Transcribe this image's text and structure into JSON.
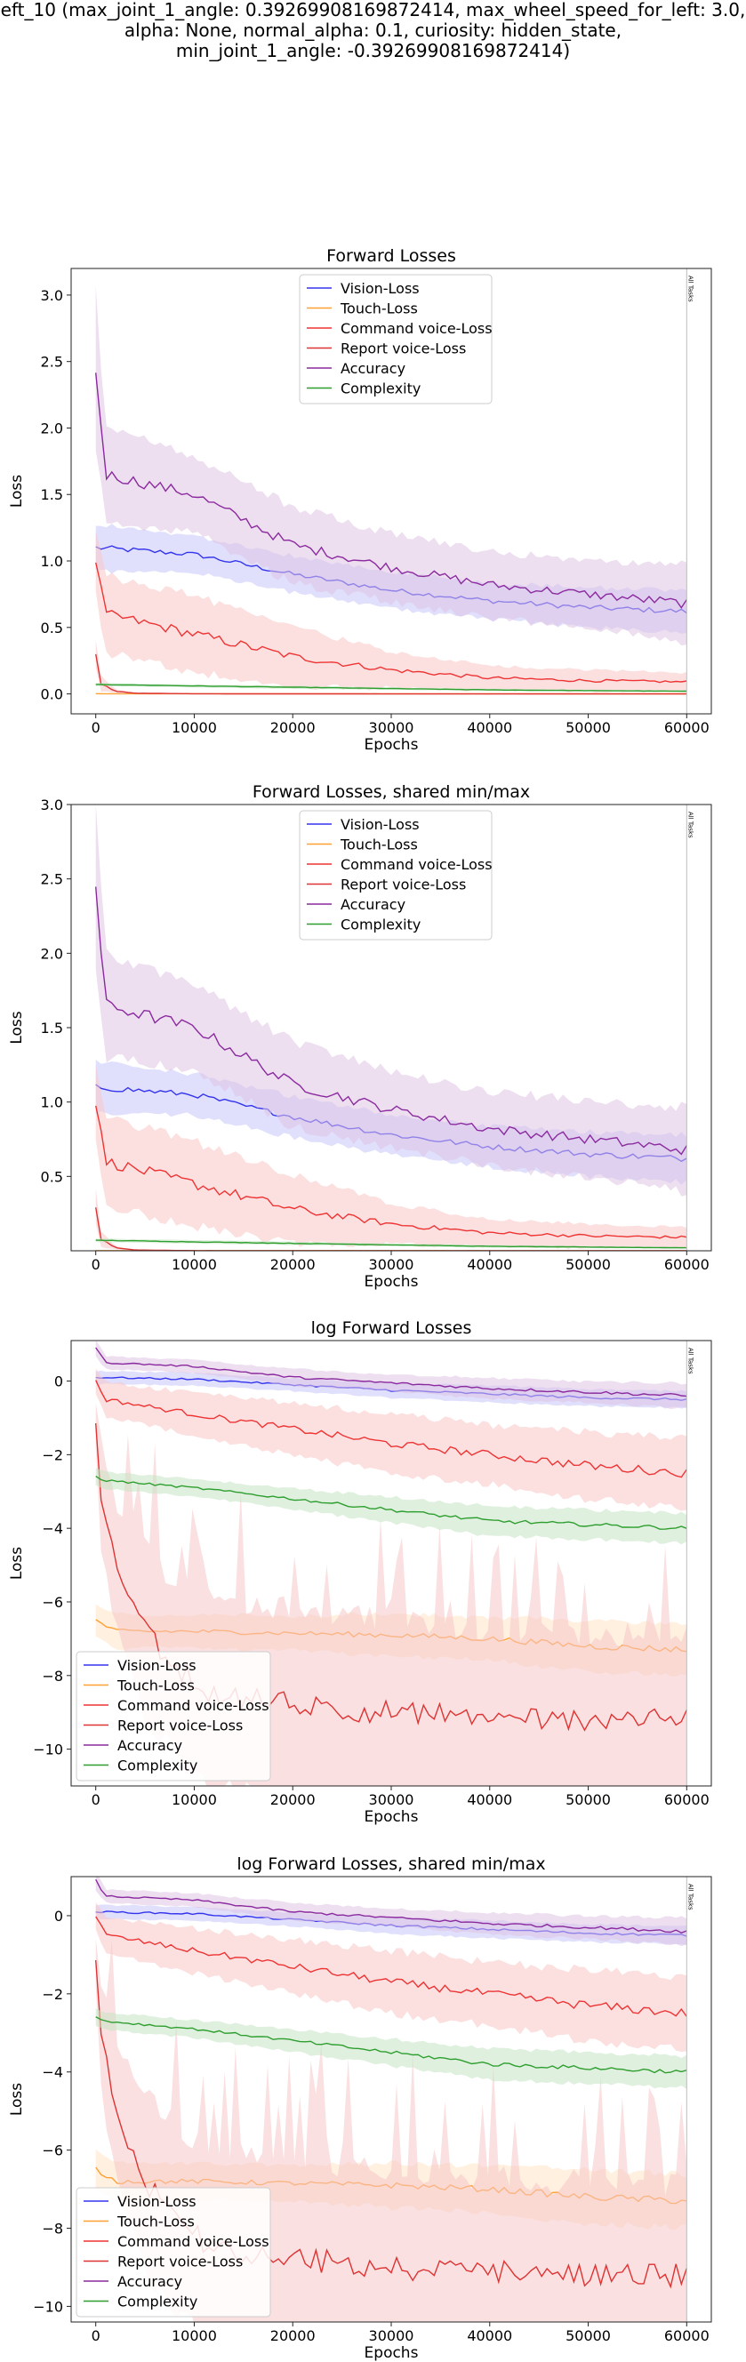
{
  "suptitle_lines": [
    "eft_10 (max_joint_1_angle: 0.39269908169872414, max_wheel_speed_for_left: 3.0,",
    "alpha: None, normal_alpha: 0.1, curiosity: hidden_state,",
    "min_joint_1_angle: -0.39269908169872414)"
  ],
  "colors": {
    "Vision-Loss": "#3333ee",
    "Touch-Loss": "#ffa033",
    "Command voice-Loss": "#ee3333",
    "Report voice-Loss": "#dd3333",
    "Accuracy": "#8a2a9e",
    "Complexity": "#2e9e2e"
  },
  "chart_data": [
    {
      "type": "line",
      "title": "Forward Losses",
      "xlabel": "Epochs",
      "ylabel": "Loss",
      "xlim": [
        -2500,
        62500
      ],
      "ylim": [
        -0.15,
        3.2
      ],
      "xticks": [
        0,
        10000,
        20000,
        30000,
        40000,
        50000,
        60000
      ],
      "yticks": [
        0.0,
        0.5,
        1.0,
        1.5,
        2.0,
        2.5,
        3.0
      ],
      "ytick_labels": [
        "0.0",
        "0.5",
        "1.0",
        "1.5",
        "2.0",
        "2.5",
        "3.0"
      ],
      "legend_position": "top-center",
      "vline_label": "All Tasks",
      "vline_x": 60000,
      "series": [
        {
          "name": "Vision-Loss",
          "x": [
            0,
            10000,
            20000,
            30000,
            40000,
            50000,
            60000
          ],
          "values": [
            1.1,
            1.05,
            0.9,
            0.78,
            0.7,
            0.65,
            0.62
          ],
          "band": [
            0.15,
            0.12,
            0.12,
            0.12,
            0.12,
            0.13,
            0.14
          ]
        },
        {
          "name": "Touch-Loss",
          "x": [
            0,
            1000,
            10000,
            20000,
            30000,
            40000,
            50000,
            60000
          ],
          "values": [
            0.0015,
            0.0012,
            0.0012,
            0.0011,
            0.0011,
            0.0008,
            0.0007,
            0.0006
          ],
          "band": [
            0.001,
            0.001,
            0.0008,
            0.0008,
            0.0008,
            0.0006,
            0.0006,
            0.0005
          ]
        },
        {
          "name": "Command voice-Loss",
          "x": [
            0,
            1000,
            10000,
            20000,
            30000,
            40000,
            50000,
            60000
          ],
          "values": [
            1.0,
            0.6,
            0.45,
            0.28,
            0.18,
            0.12,
            0.1,
            0.09
          ],
          "band": [
            0.2,
            0.25,
            0.25,
            0.2,
            0.12,
            0.08,
            0.07,
            0.06
          ]
        },
        {
          "name": "Report voice-Loss",
          "x": [
            0,
            500,
            2000,
            4000,
            10000,
            20000,
            30000,
            40000,
            50000,
            60000
          ],
          "values": [
            0.3,
            0.08,
            0.02,
            0.005,
            0.001,
            0.0002,
            0.0001,
            0.0001,
            0.0001,
            0.0001
          ],
          "band": [
            0.1,
            0.05,
            0.01,
            0.004,
            0.001,
            0.0002,
            0.0001,
            0.0001,
            0.0001,
            0.0001
          ]
        },
        {
          "name": "Accuracy",
          "x": [
            0,
            1000,
            10000,
            20000,
            30000,
            40000,
            50000,
            60000
          ],
          "values": [
            2.45,
            1.65,
            1.5,
            1.12,
            0.95,
            0.82,
            0.75,
            0.68
          ],
          "band": [
            0.55,
            0.3,
            0.25,
            0.25,
            0.22,
            0.22,
            0.22,
            0.25
          ]
        },
        {
          "name": "Complexity",
          "x": [
            0,
            1000,
            10000,
            20000,
            30000,
            40000,
            50000,
            60000
          ],
          "values": [
            0.07,
            0.07,
            0.06,
            0.05,
            0.04,
            0.03,
            0.025,
            0.02
          ],
          "band": [
            0.01,
            0.01,
            0.01,
            0.01,
            0.008,
            0.008,
            0.006,
            0.006
          ]
        }
      ]
    },
    {
      "type": "line",
      "title": "Forward Losses, shared min/max",
      "xlabel": "Epochs",
      "ylabel": "Loss",
      "xlim": [
        -2500,
        62500
      ],
      "ylim": [
        0.0,
        3.0
      ],
      "xticks": [
        0,
        10000,
        20000,
        30000,
        40000,
        50000,
        60000
      ],
      "yticks": [
        0.5,
        1.0,
        1.5,
        2.0,
        2.5,
        3.0
      ],
      "ytick_labels": [
        "0.5",
        "1.0",
        "1.5",
        "2.0",
        "2.5",
        "3.0"
      ],
      "legend_position": "top-center",
      "vline_label": "All Tasks",
      "vline_x": 60000,
      "series": [
        {
          "name": "Vision-Loss",
          "x": [
            0,
            10000,
            20000,
            30000,
            40000,
            50000,
            60000
          ],
          "values": [
            1.1,
            1.05,
            0.9,
            0.78,
            0.7,
            0.65,
            0.62
          ],
          "band": [
            0.15,
            0.12,
            0.12,
            0.12,
            0.12,
            0.13,
            0.14
          ]
        },
        {
          "name": "Touch-Loss",
          "x": [
            0,
            1000,
            10000,
            20000,
            30000,
            40000,
            50000,
            60000
          ],
          "values": [
            0.0015,
            0.0012,
            0.0012,
            0.0011,
            0.0011,
            0.0008,
            0.0007,
            0.0006
          ],
          "band": [
            0.001,
            0.001,
            0.0008,
            0.0008,
            0.0008,
            0.0006,
            0.0006,
            0.0005
          ]
        },
        {
          "name": "Command voice-Loss",
          "x": [
            0,
            1000,
            10000,
            20000,
            30000,
            40000,
            50000,
            60000
          ],
          "values": [
            1.0,
            0.6,
            0.45,
            0.28,
            0.18,
            0.12,
            0.1,
            0.09
          ],
          "band": [
            0.2,
            0.25,
            0.25,
            0.2,
            0.12,
            0.08,
            0.07,
            0.06
          ]
        },
        {
          "name": "Report voice-Loss",
          "x": [
            0,
            500,
            2000,
            4000,
            10000,
            20000,
            30000,
            40000,
            50000,
            60000
          ],
          "values": [
            0.3,
            0.08,
            0.02,
            0.005,
            0.001,
            0.0002,
            0.0001,
            0.0001,
            0.0001,
            0.0001
          ],
          "band": [
            0.1,
            0.05,
            0.01,
            0.004,
            0.001,
            0.0002,
            0.0001,
            0.0001,
            0.0001,
            0.0001
          ]
        },
        {
          "name": "Accuracy",
          "x": [
            0,
            1000,
            10000,
            20000,
            30000,
            40000,
            50000,
            60000
          ],
          "values": [
            2.45,
            1.65,
            1.5,
            1.12,
            0.95,
            0.82,
            0.75,
            0.68
          ],
          "band": [
            0.55,
            0.3,
            0.25,
            0.25,
            0.22,
            0.22,
            0.22,
            0.25
          ]
        },
        {
          "name": "Complexity",
          "x": [
            0,
            1000,
            10000,
            20000,
            30000,
            40000,
            50000,
            60000
          ],
          "values": [
            0.07,
            0.07,
            0.06,
            0.05,
            0.04,
            0.03,
            0.025,
            0.02
          ],
          "band": [
            0.01,
            0.01,
            0.01,
            0.01,
            0.008,
            0.008,
            0.006,
            0.006
          ]
        }
      ]
    },
    {
      "type": "line",
      "title": "log Forward Losses",
      "xlabel": "Epochs",
      "ylabel": "Loss",
      "xlim": [
        -2500,
        62500
      ],
      "ylim": [
        -11,
        1.1
      ],
      "xticks": [
        0,
        10000,
        20000,
        30000,
        40000,
        50000,
        60000
      ],
      "yticks": [
        -10,
        -8,
        -6,
        -4,
        -2,
        0
      ],
      "ytick_labels": [
        "−10",
        "−8",
        "−6",
        "−4",
        "−2",
        "0"
      ],
      "legend_position": "lower-left",
      "vline_label": "All Tasks",
      "vline_x": 60000,
      "series": [
        {
          "name": "Vision-Loss",
          "x": [
            0,
            10000,
            20000,
            30000,
            40000,
            50000,
            60000
          ],
          "values": [
            0.1,
            0.05,
            -0.1,
            -0.25,
            -0.35,
            -0.45,
            -0.5
          ],
          "band": [
            0.15,
            0.15,
            0.15,
            0.18,
            0.2,
            0.2,
            0.2
          ]
        },
        {
          "name": "Touch-Loss",
          "x": [
            0,
            2000,
            10000,
            20000,
            30000,
            40000,
            50000,
            60000
          ],
          "values": [
            -6.5,
            -6.8,
            -6.8,
            -6.85,
            -6.9,
            -7.0,
            -7.2,
            -7.3
          ],
          "band": [
            0.4,
            0.4,
            0.4,
            0.4,
            0.5,
            0.5,
            0.6,
            0.6
          ]
        },
        {
          "name": "Command voice-Loss",
          "x": [
            0,
            1000,
            10000,
            20000,
            30000,
            40000,
            50000,
            60000
          ],
          "values": [
            0.0,
            -0.5,
            -0.9,
            -1.3,
            -1.7,
            -2.0,
            -2.3,
            -2.5
          ],
          "band": [
            0.3,
            0.4,
            0.5,
            0.6,
            0.7,
            0.7,
            0.8,
            0.8
          ]
        },
        {
          "name": "Report voice-Loss",
          "x": [
            0,
            500,
            2000,
            5000,
            8000,
            12000,
            20000,
            30000,
            40000,
            50000,
            60000
          ],
          "values": [
            -1.2,
            -3.0,
            -5.0,
            -6.8,
            -7.8,
            -8.5,
            -8.8,
            -9.0,
            -9.1,
            -9.2,
            -9.2
          ],
          "band": [
            0.5,
            1.2,
            1.5,
            2.0,
            2.0,
            2.2,
            2.2,
            2.2,
            2.0,
            2.0,
            2.0
          ]
        },
        {
          "name": "Accuracy",
          "x": [
            0,
            1000,
            10000,
            20000,
            30000,
            40000,
            50000,
            60000
          ],
          "values": [
            0.9,
            0.5,
            0.4,
            0.1,
            -0.05,
            -0.2,
            -0.3,
            -0.4
          ],
          "band": [
            0.2,
            0.15,
            0.15,
            0.2,
            0.2,
            0.25,
            0.25,
            0.3
          ]
        },
        {
          "name": "Complexity",
          "x": [
            0,
            1000,
            10000,
            20000,
            30000,
            40000,
            50000,
            60000
          ],
          "values": [
            -2.6,
            -2.7,
            -2.9,
            -3.2,
            -3.5,
            -3.8,
            -3.9,
            -4.0
          ],
          "band": [
            0.2,
            0.2,
            0.2,
            0.25,
            0.3,
            0.35,
            0.35,
            0.35
          ]
        }
      ]
    },
    {
      "type": "line",
      "title": "log Forward Losses, shared min/max",
      "xlabel": "Epochs",
      "ylabel": "Loss",
      "xlim": [
        -2500,
        62500
      ],
      "ylim": [
        -10.4,
        1.0
      ],
      "xticks": [
        0,
        10000,
        20000,
        30000,
        40000,
        50000,
        60000
      ],
      "yticks": [
        -10,
        -8,
        -6,
        -4,
        -2,
        0
      ],
      "ytick_labels": [
        "−10",
        "−8",
        "−6",
        "−4",
        "−2",
        "0"
      ],
      "legend_position": "lower-left",
      "vline_label": "All Tasks",
      "vline_x": 60000,
      "series": [
        {
          "name": "Vision-Loss",
          "x": [
            0,
            10000,
            20000,
            30000,
            40000,
            50000,
            60000
          ],
          "values": [
            0.1,
            0.05,
            -0.1,
            -0.25,
            -0.35,
            -0.45,
            -0.5
          ],
          "band": [
            0.15,
            0.15,
            0.15,
            0.18,
            0.2,
            0.2,
            0.2
          ]
        },
        {
          "name": "Touch-Loss",
          "x": [
            0,
            2000,
            10000,
            20000,
            30000,
            40000,
            50000,
            60000
          ],
          "values": [
            -6.5,
            -6.8,
            -6.8,
            -6.85,
            -6.9,
            -7.0,
            -7.2,
            -7.3
          ],
          "band": [
            0.4,
            0.4,
            0.4,
            0.4,
            0.5,
            0.5,
            0.6,
            0.6
          ]
        },
        {
          "name": "Command voice-Loss",
          "x": [
            0,
            1000,
            10000,
            20000,
            30000,
            40000,
            50000,
            60000
          ],
          "values": [
            0.0,
            -0.5,
            -0.9,
            -1.3,
            -1.7,
            -2.0,
            -2.3,
            -2.5
          ],
          "band": [
            0.3,
            0.4,
            0.5,
            0.6,
            0.7,
            0.7,
            0.8,
            0.8
          ]
        },
        {
          "name": "Report voice-Loss",
          "x": [
            0,
            500,
            2000,
            5000,
            8000,
            12000,
            20000,
            30000,
            40000,
            50000,
            60000
          ],
          "values": [
            -1.2,
            -3.0,
            -5.0,
            -6.8,
            -7.8,
            -8.5,
            -8.8,
            -9.0,
            -9.1,
            -9.2,
            -9.2
          ],
          "band": [
            0.5,
            1.2,
            1.5,
            2.0,
            2.0,
            2.2,
            2.2,
            2.2,
            2.0,
            2.0,
            2.0
          ]
        },
        {
          "name": "Accuracy",
          "x": [
            0,
            1000,
            10000,
            20000,
            30000,
            40000,
            50000,
            60000
          ],
          "values": [
            0.9,
            0.5,
            0.4,
            0.1,
            -0.05,
            -0.2,
            -0.3,
            -0.4
          ],
          "band": [
            0.2,
            0.15,
            0.15,
            0.2,
            0.2,
            0.25,
            0.25,
            0.3
          ]
        },
        {
          "name": "Complexity",
          "x": [
            0,
            1000,
            10000,
            20000,
            30000,
            40000,
            50000,
            60000
          ],
          "values": [
            -2.6,
            -2.7,
            -2.9,
            -3.2,
            -3.5,
            -3.8,
            -3.9,
            -4.0
          ],
          "band": [
            0.2,
            0.2,
            0.2,
            0.25,
            0.3,
            0.35,
            0.35,
            0.35
          ]
        }
      ]
    }
  ]
}
